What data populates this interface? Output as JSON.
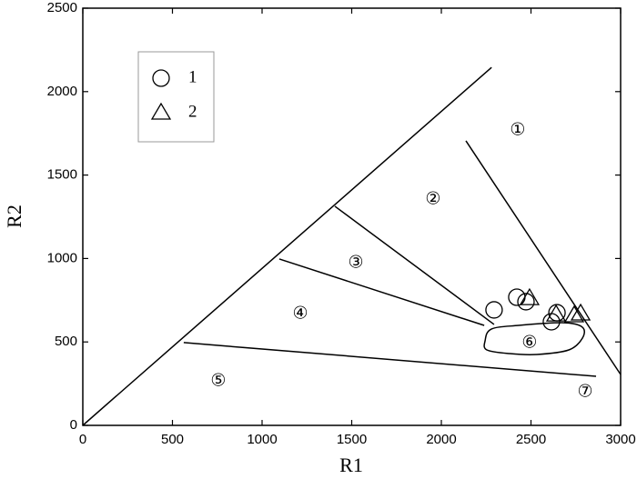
{
  "chart_data": {
    "type": "scatter",
    "xlabel": "R1",
    "ylabel": "R2",
    "xlim": [
      0,
      3000
    ],
    "ylim": [
      0,
      2500
    ],
    "xticks": [
      0,
      500,
      1000,
      1500,
      2000,
      2500,
      3000
    ],
    "yticks": [
      0,
      500,
      1000,
      1500,
      2000,
      2500
    ],
    "legend": "upper left",
    "series": [
      {
        "name": "1",
        "marker": "circle",
        "color": "#000000",
        "x": [
          2294,
          2421,
          2472,
          2614,
          2645
        ],
        "values": [
          692,
          768,
          741,
          621,
          675
        ]
      },
      {
        "name": "2",
        "marker": "triangle",
        "color": "#000000",
        "x": [
          2492,
          2640,
          2741,
          2777
        ],
        "values": [
          762,
          664,
          659,
          670
        ]
      }
    ],
    "boundaries": [
      {
        "x": [
          0,
          2280
        ],
        "y": [
          0,
          2145
        ],
        "closed": false
      },
      {
        "x": [
          2137,
          3000
        ],
        "y": [
          1705,
          305
        ],
        "closed": false
      },
      {
        "x": [
          1406,
          2294
        ],
        "y": [
          1313,
          605
        ],
        "closed": false
      },
      {
        "x": [
          1096,
          2239
        ],
        "y": [
          997,
          599
        ],
        "closed": false
      },
      {
        "x": [
          563,
          2863
        ],
        "y": [
          496,
          294
        ],
        "closed": false
      },
      {
        "x": [
          2244,
          2279,
          2431,
          2685,
          2787,
          2787,
          2711,
          2533,
          2381,
          2254
        ],
        "y": [
          507,
          577,
          599,
          615,
          588,
          523,
          452,
          425,
          430,
          452
        ],
        "closed": true
      }
    ],
    "annotations": [
      {
        "text": "①",
        "x": 2426,
        "y": 1770
      },
      {
        "text": "②",
        "x": 1954,
        "y": 1356
      },
      {
        "text": "③",
        "x": 1523,
        "y": 975
      },
      {
        "text": "④",
        "x": 1213,
        "y": 670
      },
      {
        "text": "⑤",
        "x": 756,
        "y": 267
      },
      {
        "text": "⑥",
        "x": 2492,
        "y": 496
      },
      {
        "text": "⑦",
        "x": 2802,
        "y": 202
      }
    ]
  }
}
